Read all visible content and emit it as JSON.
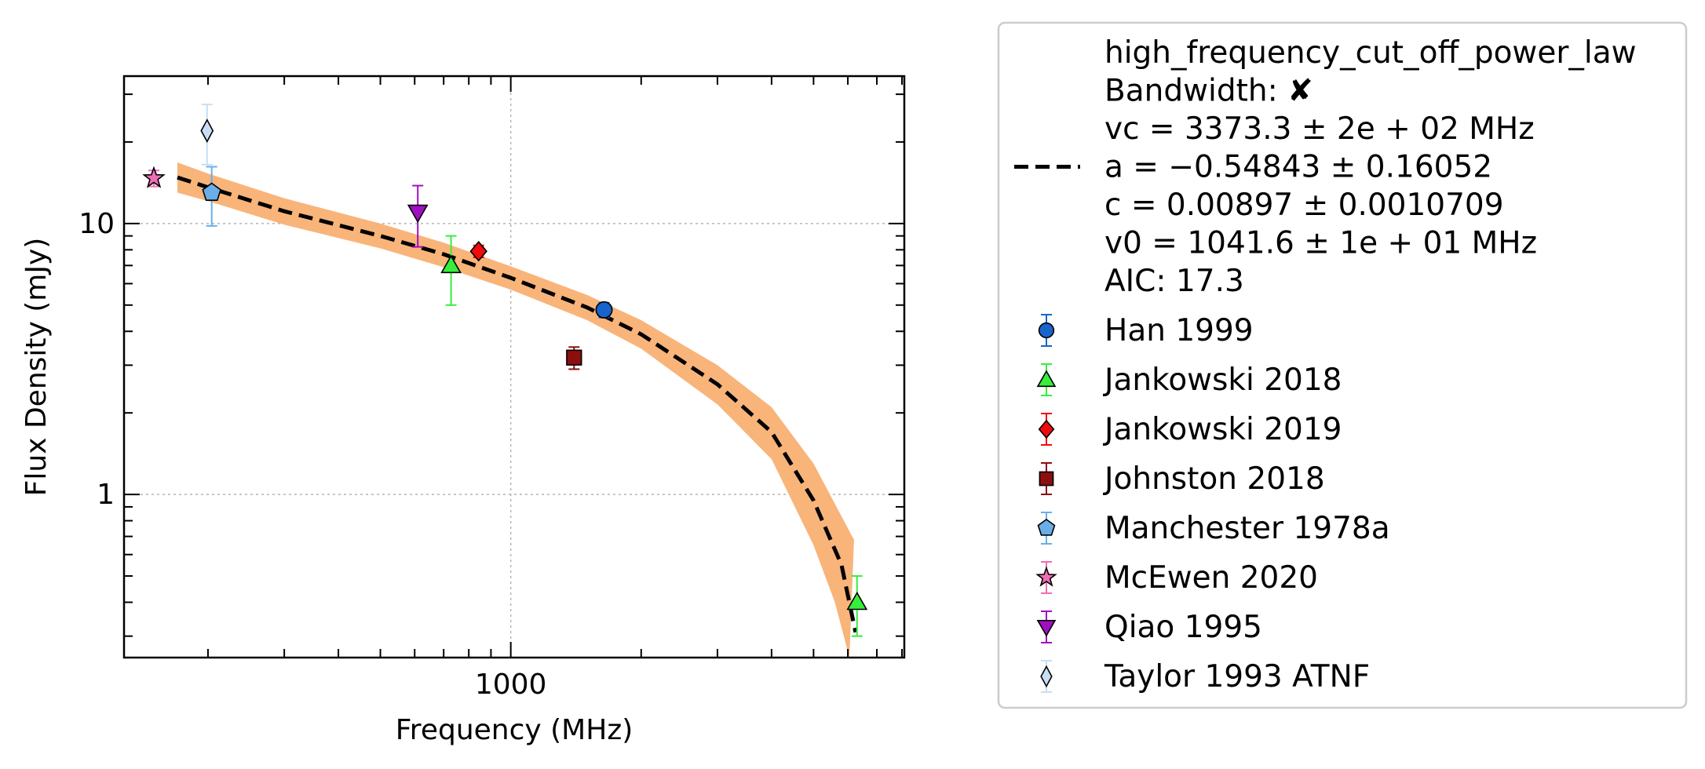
{
  "chart_data": {
    "type": "scatter",
    "xlabel": "Frequency (MHz)",
    "ylabel": "Flux Density (mJy)",
    "xscale": "log",
    "yscale": "log",
    "xlim": [
      128,
      8100
    ],
    "ylim": [
      0.25,
      35
    ],
    "x_ticks": [
      {
        "value": 1000,
        "label": "1000"
      }
    ],
    "y_ticks": [
      {
        "value": 1,
        "label": "1"
      },
      {
        "value": 10,
        "label": "10"
      }
    ],
    "grid": true,
    "legend_position": "outside-right",
    "fit": {
      "name": "high_frequency_cut_off_power_law",
      "lines": [
        "high_frequency_cut_off_power_law",
        "Bandwidth: ✘",
        "vc = 3373.3 ± 2e + 02 MHz",
        "a = −0.54843 ± 0.16052",
        "c = 0.00897 ± 0.0010709",
        "v0 = 1041.6 ± 1e + 01 MHz",
        "AIC: 17.3"
      ],
      "line_color": "#000000",
      "band_color": "#f9b47a",
      "points": [
        [
          170,
          14.8
        ],
        [
          200,
          13.6
        ],
        [
          300,
          11.1
        ],
        [
          500,
          9.0
        ],
        [
          700,
          7.7
        ],
        [
          1000,
          6.3
        ],
        [
          1500,
          4.9
        ],
        [
          2000,
          3.9
        ],
        [
          3000,
          2.55
        ],
        [
          4000,
          1.7
        ],
        [
          5000,
          0.95
        ],
        [
          5800,
          0.55
        ],
        [
          6250,
          0.31
        ]
      ],
      "band_upper": [
        [
          170,
          16.8
        ],
        [
          200,
          15.3
        ],
        [
          300,
          12.4
        ],
        [
          500,
          10.0
        ],
        [
          700,
          8.5
        ],
        [
          1000,
          6.95
        ],
        [
          1500,
          5.45
        ],
        [
          2000,
          4.4
        ],
        [
          3000,
          3.0
        ],
        [
          4000,
          2.1
        ],
        [
          5000,
          1.3
        ],
        [
          6200,
          0.68
        ]
      ],
      "band_lower": [
        [
          170,
          13.0
        ],
        [
          200,
          12.1
        ],
        [
          300,
          9.9
        ],
        [
          500,
          8.1
        ],
        [
          700,
          6.9
        ],
        [
          1000,
          5.7
        ],
        [
          1500,
          4.4
        ],
        [
          2000,
          3.45
        ],
        [
          3000,
          2.15
        ],
        [
          4000,
          1.35
        ],
        [
          5000,
          0.65
        ],
        [
          5600,
          0.4
        ],
        [
          6050,
          0.25
        ]
      ]
    },
    "series": [
      {
        "name": "Han 1999",
        "marker": "circle",
        "color": "#1764cc",
        "points": [
          {
            "x": 1642,
            "y": 4.8,
            "yerr": 0.3
          }
        ]
      },
      {
        "name": "Jankowski 2018",
        "marker": "triangle-up",
        "color": "#37ee3d",
        "points": [
          {
            "x": 728,
            "y": 7.0,
            "yerr": 2.0
          },
          {
            "x": 6300,
            "y": 0.4,
            "yerr": 0.1
          }
        ]
      },
      {
        "name": "Jankowski 2019",
        "marker": "diamond",
        "color": "#ee0c0c",
        "points": [
          {
            "x": 843,
            "y": 7.9,
            "yerr": 0.4
          }
        ]
      },
      {
        "name": "Johnston 2018",
        "marker": "square",
        "color": "#8b0f0f",
        "points": [
          {
            "x": 1400,
            "y": 3.2,
            "yerr": 0.3
          }
        ]
      },
      {
        "name": "Manchester 1978a",
        "marker": "pentagon",
        "color": "#6aaee8",
        "points": [
          {
            "x": 204,
            "y": 13.0,
            "yerr": 3.2
          }
        ]
      },
      {
        "name": "McEwen 2020",
        "marker": "star",
        "color": "#ee6eb4",
        "points": [
          {
            "x": 150,
            "y": 14.7,
            "yerr": 1.0
          }
        ]
      },
      {
        "name": "Qiao 1995",
        "marker": "triangle-down",
        "color": "#a010c0",
        "points": [
          {
            "x": 610,
            "y": 11.0,
            "yerr": 2.8
          }
        ]
      },
      {
        "name": "Taylor 1993 ATNF",
        "marker": "thin-diamond",
        "color": "#c8def5",
        "points": [
          {
            "x": 199,
            "y": 22.0,
            "yerr": 5.5
          }
        ]
      }
    ]
  }
}
